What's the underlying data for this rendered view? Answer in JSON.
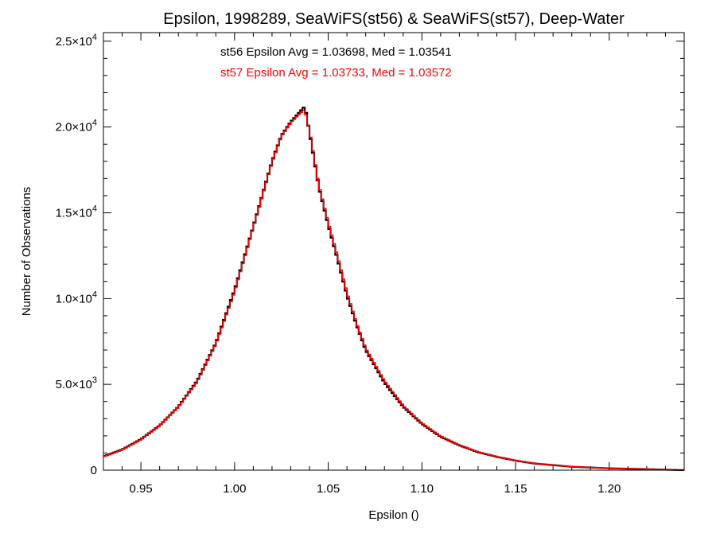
{
  "chart_data": {
    "type": "line",
    "title": "Epsilon, 1998289, SeaWiFS(st56) & SeaWiFS(st57), Deep-Water",
    "xlabel": "Epsilon ()",
    "ylabel": "Number of Observations",
    "xlim": [
      0.93,
      1.24
    ],
    "ylim": [
      0,
      25500
    ],
    "grid": false,
    "step": true,
    "xticks": [
      0.95,
      1.0,
      1.05,
      1.1,
      1.15,
      1.2
    ],
    "xtick_labels": [
      "0.95",
      "1.00",
      "1.05",
      "1.10",
      "1.15",
      "1.20"
    ],
    "yticks": [
      0,
      5000,
      10000,
      15000,
      20000,
      25000
    ],
    "ytick_labels": [
      {
        "mant": "0",
        "exp": ""
      },
      {
        "mant": "5.0×10",
        "exp": "3"
      },
      {
        "mant": "1.0×10",
        "exp": "4"
      },
      {
        "mant": "1.5×10",
        "exp": "4"
      },
      {
        "mant": "2.0×10",
        "exp": "4"
      },
      {
        "mant": "2.5×10",
        "exp": "4"
      }
    ],
    "annotations": [
      {
        "text": "st56 Epsilon Avg = 1.03698, Med = 1.03541",
        "color": "#000000"
      },
      {
        "text": "st57 Epsilon Avg = 1.03733, Med = 1.03572",
        "color": "#ff0000"
      }
    ],
    "x": [
      0.93,
      0.94,
      0.95,
      0.96,
      0.97,
      0.98,
      0.99,
      1.0,
      1.01,
      1.02,
      1.025,
      1.03,
      1.035,
      1.0375,
      1.04,
      1.045,
      1.05,
      1.055,
      1.06,
      1.065,
      1.07,
      1.08,
      1.09,
      1.1,
      1.11,
      1.12,
      1.13,
      1.14,
      1.15,
      1.16,
      1.18,
      1.2,
      1.22,
      1.24
    ],
    "series": [
      {
        "name": "st56",
        "color": "#000000",
        "values": [
          800,
          1200,
          1800,
          2600,
          3700,
          5200,
          7400,
          10500,
          14200,
          18000,
          19500,
          20300,
          20900,
          21200,
          19700,
          16500,
          14300,
          12300,
          10200,
          8500,
          7000,
          5100,
          3700,
          2700,
          1950,
          1450,
          1050,
          780,
          560,
          390,
          200,
          110,
          60,
          0
        ]
      },
      {
        "name": "st57",
        "color": "#ff0000",
        "values": [
          780,
          1180,
          1780,
          2580,
          3680,
          5150,
          7350,
          10400,
          14150,
          17950,
          19450,
          20250,
          20800,
          21000,
          19800,
          16600,
          14450,
          12450,
          10350,
          8600,
          7100,
          5200,
          3760,
          2740,
          1980,
          1470,
          1070,
          790,
          570,
          395,
          205,
          112,
          62,
          0
        ]
      }
    ]
  }
}
